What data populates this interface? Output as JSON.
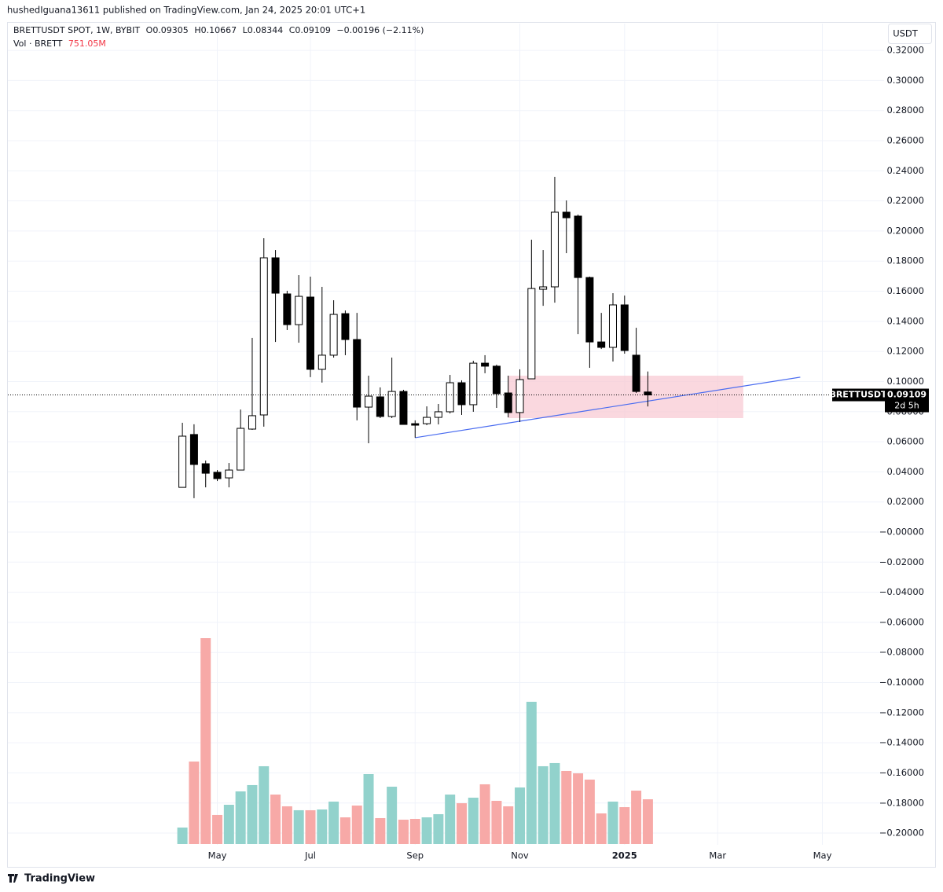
{
  "header": {
    "publisher": "hushedIguana13611 published on TradingView.com, Jan 24, 2025 20:01 UTC+1",
    "footer": "TradingView"
  },
  "chart_data": {
    "type": "candlestick",
    "title": "BRETTUSDT SPOT, 1W, BYBIT",
    "ohlc_labels": [
      "O",
      "H",
      "L",
      "C"
    ],
    "change_label": "−0.00196 (−2.11%)",
    "currency": "USDT",
    "countdown": "2d 5h",
    "x": [
      0,
      1,
      2,
      3,
      4,
      5,
      6,
      7,
      8,
      9,
      10,
      11,
      12,
      13,
      14,
      15,
      16,
      17,
      18,
      19,
      20,
      21,
      22,
      23,
      24,
      25,
      26,
      27,
      28,
      29,
      30,
      31,
      32,
      33,
      34,
      35,
      36,
      37,
      38,
      39,
      40
    ],
    "series": [
      {
        "name": "BRETTUSDT",
        "up_color": "#ffffff",
        "down_color": "#000000",
        "open": [
          0.0297,
          0.0648,
          0.0454,
          0.0397,
          0.036,
          0.0412,
          0.0684,
          0.0778,
          0.1822,
          0.1582,
          0.1378,
          0.1561,
          0.1081,
          0.1175,
          0.1451,
          0.1279,
          0.083,
          0.0898,
          0.0768,
          0.0934,
          0.072,
          0.072,
          0.0762,
          0.0799,
          0.0992,
          0.0846,
          0.1122,
          0.1102,
          0.0924,
          0.0794,
          0.1018,
          0.1613,
          0.1629,
          0.2125,
          0.2099,
          0.1691,
          0.1263,
          0.1227,
          0.1509,
          0.1175,
          0.09305
        ],
        "high": [
          0.0726,
          0.0716,
          0.0475,
          0.0412,
          0.0459,
          0.0814,
          0.129,
          0.1952,
          0.1874,
          0.1603,
          0.1707,
          0.1697,
          0.1629,
          0.154,
          0.1472,
          0.1456,
          0.1039,
          0.0961,
          0.1159,
          0.0945,
          0.0742,
          0.0835,
          0.0851,
          0.1044,
          0.1008,
          0.1138,
          0.1175,
          0.1112,
          0.1039,
          0.1081,
          0.1942,
          0.1874,
          0.236,
          0.2203,
          0.2109,
          0.1697,
          0.1456,
          0.1587,
          0.1571,
          0.1357,
          0.10667
        ],
        "low": [
          0.0297,
          0.0225,
          0.0297,
          0.0339,
          0.0297,
          0.0412,
          0.0679,
          0.07,
          0.1263,
          0.1342,
          0.1258,
          0.1029,
          0.0993,
          0.1159,
          0.1175,
          0.0742,
          0.059,
          0.0757,
          0.0757,
          0.0715,
          0.0627,
          0.071,
          0.0715,
          0.0788,
          0.0778,
          0.0799,
          0.1055,
          0.0825,
          0.0762,
          0.0731,
          0.1018,
          0.1503,
          0.1524,
          0.1853,
          0.1315,
          0.1091,
          0.1216,
          0.1133,
          0.1185,
          0.0924,
          0.08344
        ],
        "close": [
          0.0637,
          0.0449,
          0.0391,
          0.0355,
          0.0412,
          0.0689,
          0.0773,
          0.1822,
          0.1587,
          0.1378,
          0.1566,
          0.1081,
          0.1175,
          0.1446,
          0.1279,
          0.083,
          0.0903,
          0.0768,
          0.0934,
          0.0715,
          0.071,
          0.0762,
          0.0799,
          0.0992,
          0.0846,
          0.1122,
          0.1102,
          0.0919,
          0.0794,
          0.1013,
          0.1618,
          0.1629,
          0.2125,
          0.2088,
          0.1691,
          0.1263,
          0.1227,
          0.1509,
          0.1206,
          0.0934,
          0.09109
        ]
      }
    ],
    "volume": {
      "name": "Vol · BRETT",
      "last_value_label": "751.05M",
      "up_color": "#92d2cc",
      "down_color": "#f7a9a7",
      "values": [
        277,
        1384,
        3453,
        488,
        659,
        883,
        989,
        1305,
        830,
        633,
        567,
        567,
        580,
        712,
        448,
        646,
        1173,
        435,
        962,
        409,
        422,
        448,
        501,
        830,
        685,
        778,
        1002,
        725,
        633,
        949,
        2386,
        1305,
        1358,
        1226,
        1186,
        1081,
        514,
        712,
        619,
        896,
        751.05
      ]
    },
    "xlim": [
      -15,
      60.3
    ],
    "xticks": [
      {
        "value": 3,
        "label": "May"
      },
      {
        "value": 11,
        "label": "Jul"
      },
      {
        "value": 20,
        "label": "Sep"
      },
      {
        "value": 29,
        "label": "Nov"
      },
      {
        "value": 38,
        "label": "2025"
      },
      {
        "value": 46,
        "label": "Mar"
      },
      {
        "value": 55,
        "label": "May"
      }
    ],
    "ylim": [
      -0.2078,
      0.3378
    ],
    "yticks": [
      {
        "value": 0.32,
        "label": "0.32000"
      },
      {
        "value": 0.3,
        "label": "0.30000"
      },
      {
        "value": 0.28,
        "label": "0.28000"
      },
      {
        "value": 0.26,
        "label": "0.26000"
      },
      {
        "value": 0.24,
        "label": "0.24000"
      },
      {
        "value": 0.22,
        "label": "0.22000"
      },
      {
        "value": 0.2,
        "label": "0.20000"
      },
      {
        "value": 0.18,
        "label": "0.18000"
      },
      {
        "value": 0.16,
        "label": "0.16000"
      },
      {
        "value": 0.14,
        "label": "0.14000"
      },
      {
        "value": 0.12,
        "label": "0.12000"
      },
      {
        "value": 0.1,
        "label": "0.10000"
      },
      {
        "value": 0.08,
        "label": "0.08000"
      },
      {
        "value": 0.06,
        "label": "0.06000"
      },
      {
        "value": 0.04,
        "label": "0.04000"
      },
      {
        "value": 0.02,
        "label": "0.02000"
      },
      {
        "value": 0,
        "label": "−0.00000"
      },
      {
        "value": -0.02,
        "label": "−0.02000"
      },
      {
        "value": -0.04,
        "label": "−0.04000"
      },
      {
        "value": -0.06,
        "label": "−0.06000"
      },
      {
        "value": -0.08,
        "label": "−0.08000"
      },
      {
        "value": -0.1,
        "label": "−0.10000"
      },
      {
        "value": -0.12,
        "label": "−0.12000"
      },
      {
        "value": -0.14,
        "label": "−0.14000"
      },
      {
        "value": -0.16,
        "label": "−0.16000"
      },
      {
        "value": -0.18,
        "label": "−0.18000"
      },
      {
        "value": -0.2,
        "label": "−0.20000"
      }
    ],
    "grid": true,
    "annotations": [
      {
        "type": "rectangle",
        "x": [
          28,
          48.2
        ],
        "y": [
          0.0757,
          0.1039
        ],
        "color": "#f8c8d2"
      },
      {
        "type": "line",
        "x": [
          20,
          53.1
        ],
        "y": [
          0.0627,
          0.1029
        ],
        "color": "#4a6cf0"
      }
    ]
  }
}
